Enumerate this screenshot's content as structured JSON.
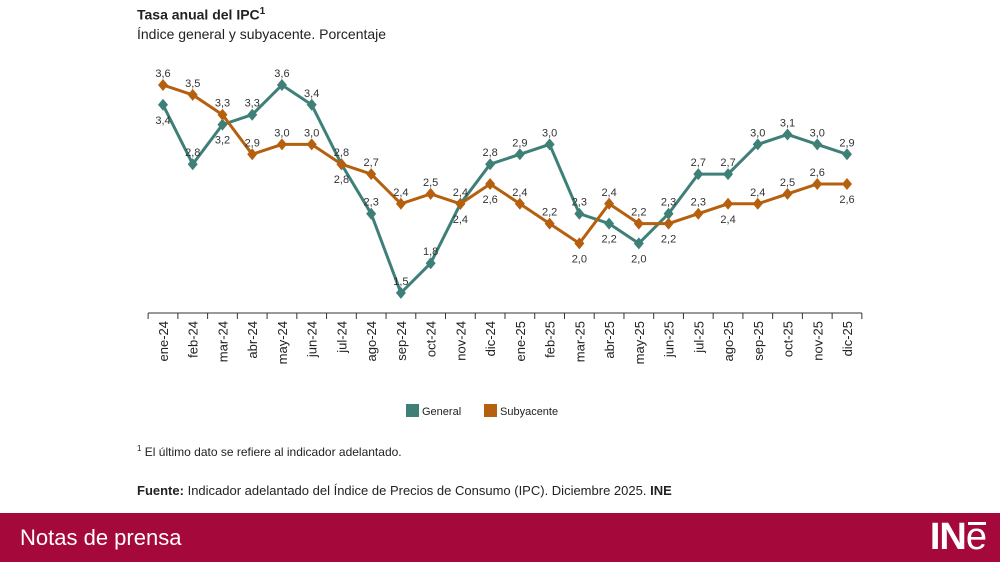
{
  "header": {
    "title": "Tasa anual del IPC",
    "title_sup": "1",
    "subtitle": "Índice general y subyacente. Porcentaje"
  },
  "chart_data": {
    "type": "line",
    "title": "Tasa anual del IPC",
    "subtitle": "Índice general y subyacente. Porcentaje",
    "categories": [
      "ene-24",
      "feb-24",
      "mar-24",
      "abr-24",
      "may-24",
      "jun-24",
      "jul-24",
      "ago-24",
      "sep-24",
      "oct-24",
      "nov-24",
      "dic-24",
      "ene-25",
      "feb-25",
      "mar-25",
      "abr-25",
      "may-25",
      "jun-25",
      "jul-25",
      "ago-25",
      "sep-25",
      "oct-25",
      "nov-25",
      "dic-25"
    ],
    "series": [
      {
        "name": "General",
        "color": "#3e8078",
        "values": [
          3.4,
          2.8,
          3.2,
          3.3,
          3.6,
          3.4,
          2.8,
          2.3,
          1.5,
          1.8,
          2.4,
          2.8,
          2.9,
          3.0,
          2.3,
          2.2,
          2.0,
          2.3,
          2.7,
          2.7,
          3.0,
          3.1,
          3.0,
          2.9
        ]
      },
      {
        "name": "Subyacente",
        "color": "#b5600f",
        "values": [
          3.6,
          3.5,
          3.3,
          2.9,
          3.0,
          3.0,
          2.8,
          2.7,
          2.4,
          2.5,
          2.4,
          2.6,
          2.4,
          2.2,
          2.0,
          2.4,
          2.2,
          2.2,
          2.3,
          2.4,
          2.4,
          2.5,
          2.6,
          2.6
        ]
      }
    ],
    "data_labels": true,
    "grid": false,
    "legend": "bottom",
    "decimal_separator": ","
  },
  "footnote": {
    "sup": "1",
    "text": "El último dato se refiere al indicador adelantado."
  },
  "source": {
    "label": "Fuente:",
    "text": "Indicador adelantado del Índice de Precios de Consumo (IPC). Diciembre 2025.",
    "org": "INE"
  },
  "footer": {
    "text": "Notas de prensa",
    "logo": "INE",
    "color": "#a5083a"
  }
}
